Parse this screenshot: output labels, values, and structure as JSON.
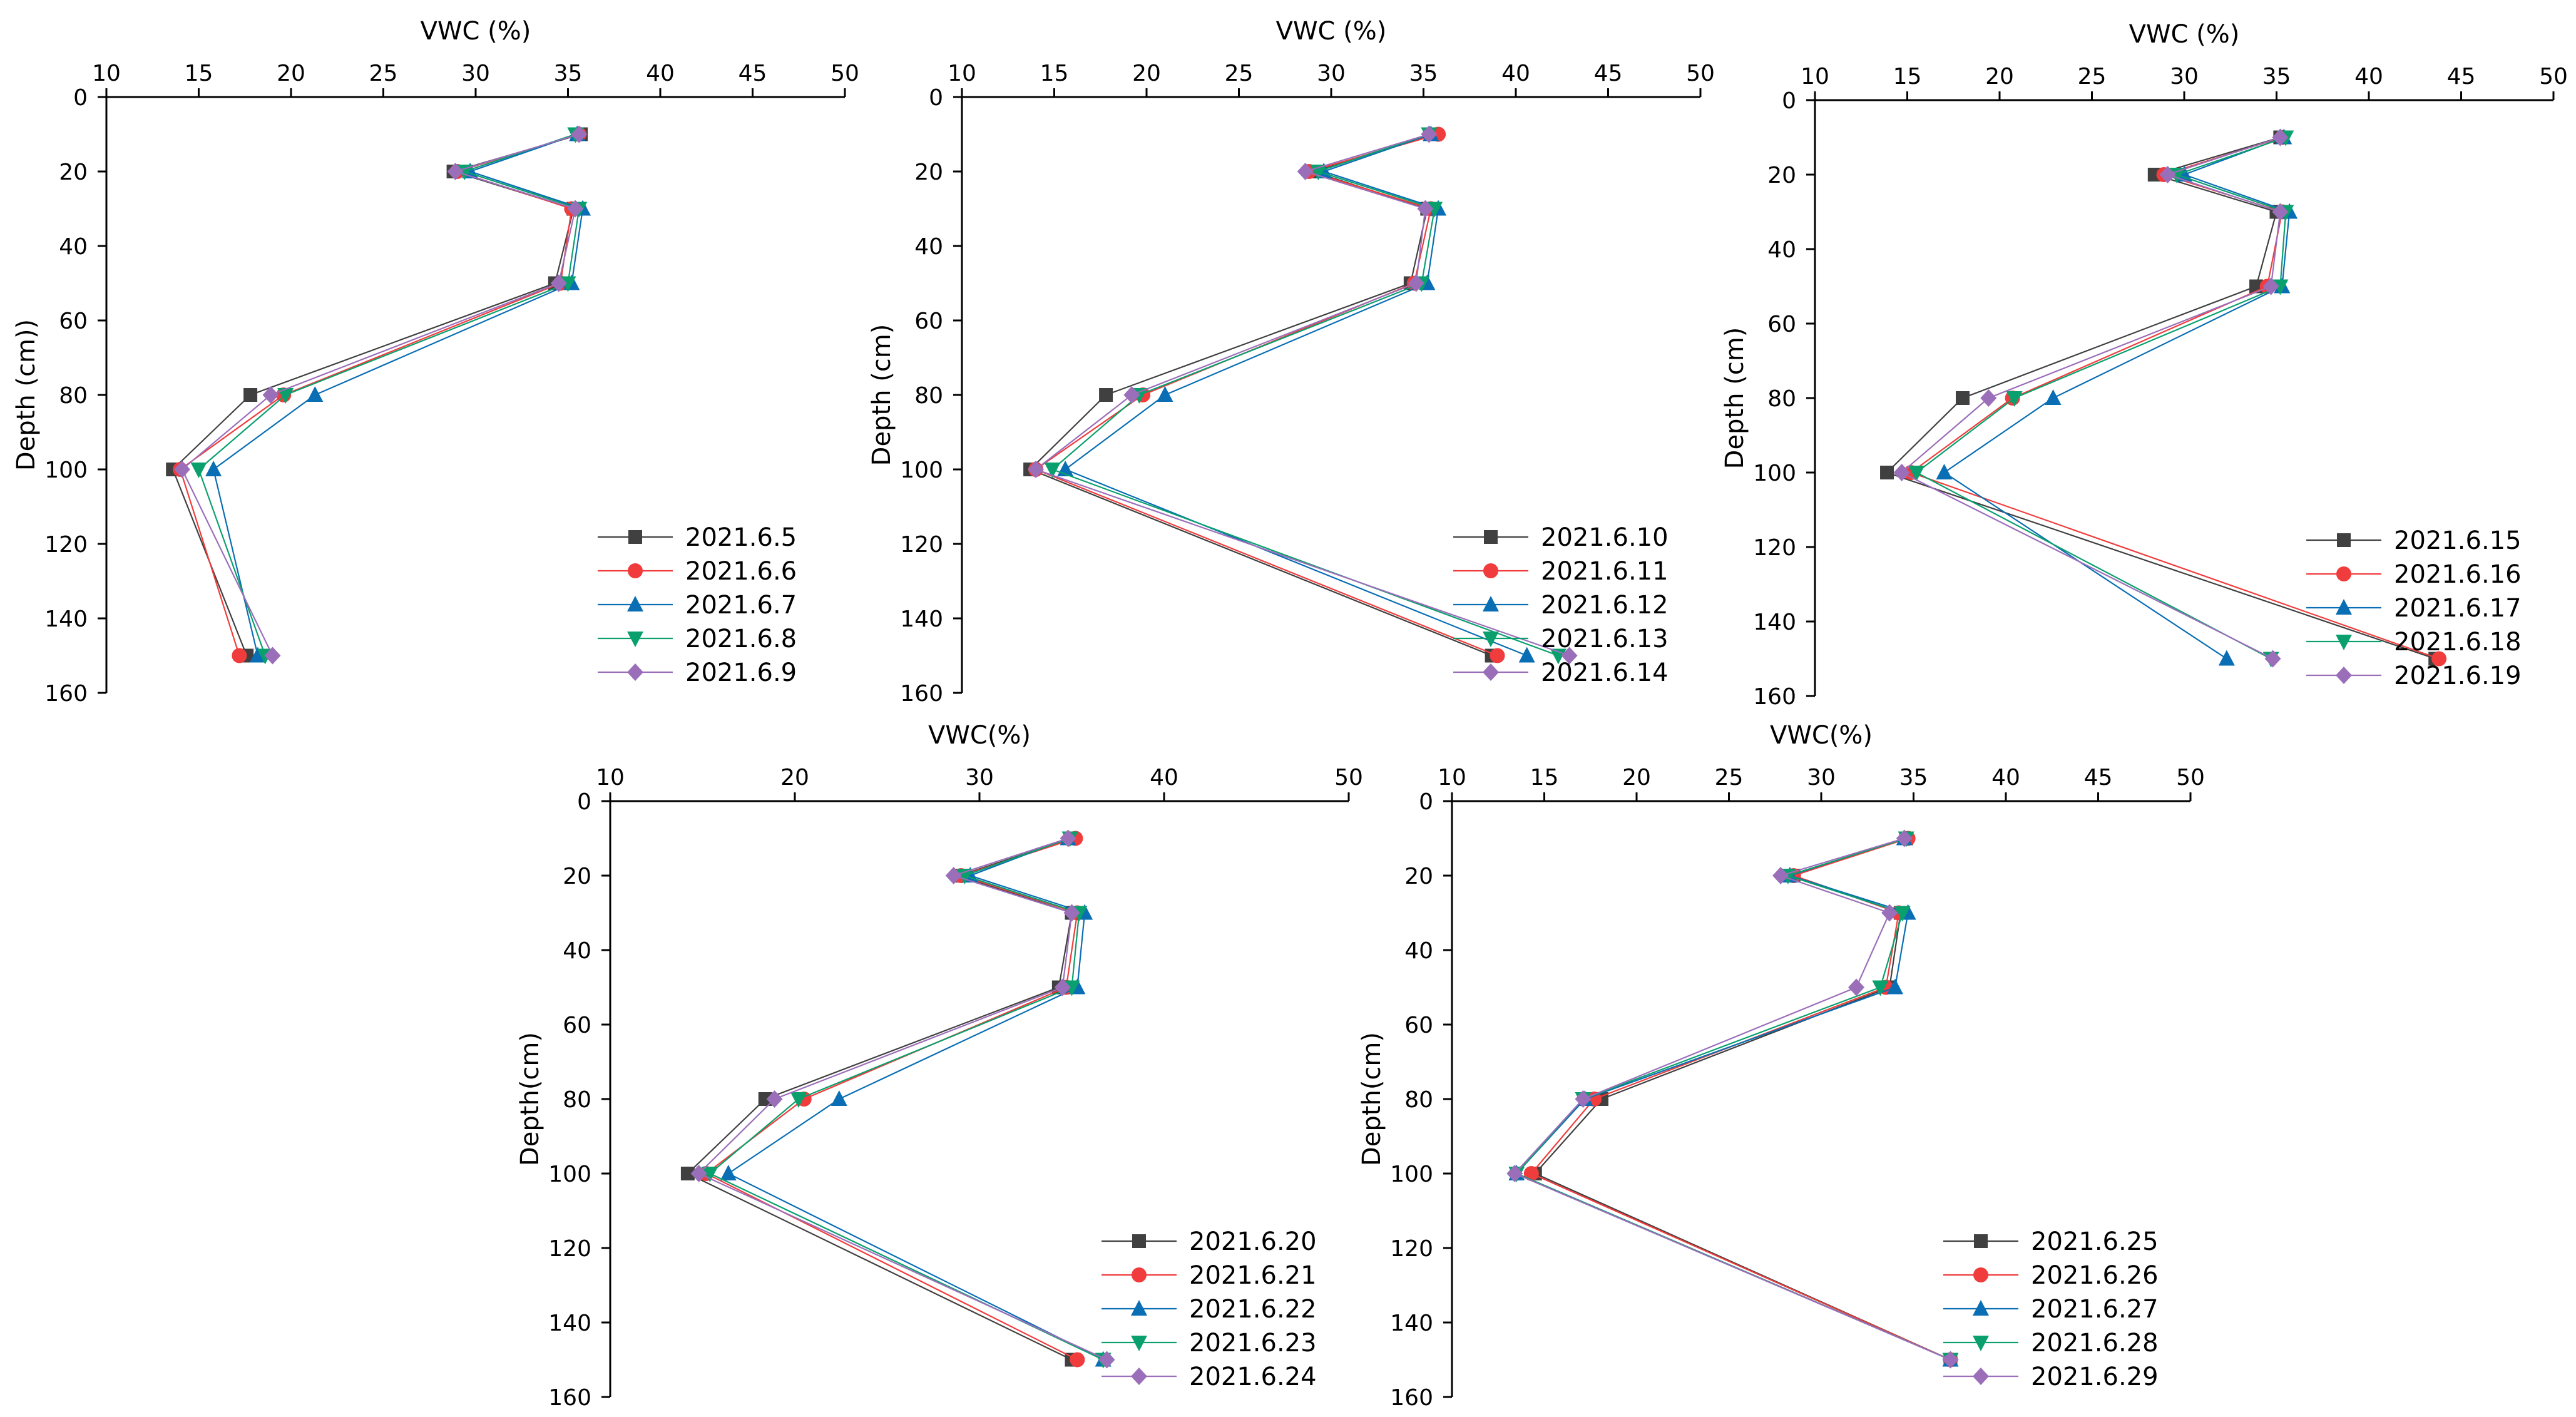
{
  "colors": {
    "series": [
      "#404040",
      "#f03c3c",
      "#0a6eb4",
      "#0aa06e",
      "#9b6eb9"
    ],
    "axis": "#000000"
  },
  "markers": [
    "square",
    "circle",
    "triangle-up",
    "triangle-down",
    "diamond"
  ],
  "chart_data": [
    {
      "type": "line",
      "xlabel": "VWC (%)",
      "ylabel": "Depth (cm))",
      "xlim": [
        10,
        50
      ],
      "ylim": [
        0,
        160
      ],
      "xticks": [
        "10",
        "15",
        "20",
        "25",
        "30",
        "35",
        "40",
        "45",
        "50"
      ],
      "yticks": [
        "0",
        "20",
        "40",
        "60",
        "80",
        "100",
        "120",
        "140",
        "160"
      ],
      "legend_position": "bottom-right",
      "depth": [
        10,
        20,
        30,
        50,
        80,
        100,
        150
      ],
      "series": [
        {
          "name": "2021.6.5",
          "values": [
            35.7,
            28.8,
            35.3,
            34.3,
            17.8,
            13.6,
            17.6
          ]
        },
        {
          "name": "2021.6.6",
          "values": [
            35.6,
            29.0,
            35.2,
            34.6,
            19.6,
            14.0,
            17.2
          ]
        },
        {
          "name": "2021.6.7",
          "values": [
            35.5,
            29.7,
            35.8,
            35.2,
            21.3,
            15.8,
            18.2
          ]
        },
        {
          "name": "2021.6.8",
          "values": [
            35.4,
            29.4,
            35.6,
            35.0,
            19.7,
            15.0,
            18.6
          ]
        },
        {
          "name": "2021.6.9",
          "values": [
            35.6,
            28.9,
            35.4,
            34.5,
            18.9,
            14.1,
            19.0
          ]
        }
      ]
    },
    {
      "type": "line",
      "xlabel": "VWC (%)",
      "ylabel": "Depth (cm)",
      "xlim": [
        10,
        50
      ],
      "ylim": [
        0,
        160
      ],
      "xticks": [
        "10",
        "15",
        "20",
        "25",
        "30",
        "35",
        "40",
        "45",
        "50"
      ],
      "yticks": [
        "0",
        "20",
        "40",
        "60",
        "80",
        "100",
        "120",
        "140",
        "160"
      ],
      "legend_position": "bottom-right",
      "depth": [
        10,
        20,
        30,
        50,
        80,
        100,
        150
      ],
      "series": [
        {
          "name": "2021.6.10",
          "values": [
            35.5,
            29.0,
            35.2,
            34.3,
            17.8,
            13.7,
            38.7
          ]
        },
        {
          "name": "2021.6.11",
          "values": [
            35.8,
            28.8,
            35.4,
            34.5,
            19.8,
            14.0,
            39.0
          ]
        },
        {
          "name": "2021.6.12",
          "values": [
            35.4,
            29.6,
            35.8,
            35.2,
            21.0,
            15.6,
            40.6
          ]
        },
        {
          "name": "2021.6.13",
          "values": [
            35.3,
            29.3,
            35.6,
            34.9,
            19.6,
            14.9,
            42.3
          ]
        },
        {
          "name": "2021.6.14",
          "values": [
            35.3,
            28.6,
            35.1,
            34.6,
            19.2,
            14.0,
            42.9
          ]
        }
      ]
    },
    {
      "type": "line",
      "xlabel": "VWC (%)",
      "ylabel": "Depth (cm)",
      "xlim": [
        10,
        50
      ],
      "ylim": [
        0,
        160
      ],
      "xticks": [
        "10",
        "15",
        "20",
        "25",
        "30",
        "35",
        "40",
        "45",
        "50"
      ],
      "yticks": [
        "0",
        "20",
        "40",
        "60",
        "80",
        "100",
        "120",
        "140",
        "160"
      ],
      "legend_position": "bottom-right",
      "depth": [
        10,
        20,
        30,
        50,
        80,
        100,
        150
      ],
      "series": [
        {
          "name": "2021.6.15",
          "values": [
            35.2,
            28.4,
            35.0,
            33.9,
            18.0,
            13.9,
            43.6
          ]
        },
        {
          "name": "2021.6.16",
          "values": [
            35.3,
            28.9,
            35.3,
            34.5,
            20.7,
            15.2,
            43.8
          ]
        },
        {
          "name": "2021.6.17",
          "values": [
            35.4,
            30.0,
            35.7,
            35.3,
            22.9,
            17.0,
            32.3
          ]
        },
        {
          "name": "2021.6.18",
          "values": [
            35.5,
            29.6,
            35.5,
            35.2,
            20.8,
            15.5,
            34.7
          ]
        },
        {
          "name": "2021.6.19",
          "values": [
            35.2,
            29.1,
            35.2,
            34.7,
            19.4,
            14.7,
            34.8
          ]
        }
      ]
    },
    {
      "type": "line",
      "xlabel": "VWC(%)",
      "ylabel": "Depth(cm)",
      "xlim": [
        10,
        50
      ],
      "ylim": [
        0,
        160
      ],
      "xticks": [
        "10",
        "20",
        "30",
        "40",
        "50"
      ],
      "yticks": [
        "0",
        "20",
        "40",
        "60",
        "80",
        "100",
        "120",
        "140",
        "160"
      ],
      "legend_position": "bottom-right",
      "depth": [
        10,
        20,
        30,
        50,
        80,
        100,
        150
      ],
      "series": [
        {
          "name": "2021.6.20",
          "values": [
            35.0,
            28.9,
            35.0,
            34.3,
            18.4,
            14.2,
            35.0
          ]
        },
        {
          "name": "2021.6.21",
          "values": [
            35.2,
            29.0,
            35.3,
            34.7,
            20.5,
            15.2,
            35.3
          ]
        },
        {
          "name": "2021.6.22",
          "values": [
            34.8,
            29.5,
            35.7,
            35.3,
            22.4,
            16.4,
            36.7
          ]
        },
        {
          "name": "2021.6.23",
          "values": [
            34.9,
            29.2,
            35.4,
            35.0,
            20.2,
            15.4,
            36.7
          ]
        },
        {
          "name": "2021.6.24",
          "values": [
            34.8,
            28.6,
            35.0,
            34.5,
            18.9,
            14.8,
            36.9
          ]
        }
      ]
    },
    {
      "type": "line",
      "xlabel": "VWC(%)",
      "ylabel": "Depth(cm)",
      "xlim": [
        10,
        50
      ],
      "ylim": [
        0,
        160
      ],
      "xticks": [
        "10",
        "15",
        "20",
        "25",
        "30",
        "35",
        "40",
        "45",
        "50"
      ],
      "yticks": [
        "0",
        "20",
        "40",
        "60",
        "80",
        "100",
        "120",
        "140",
        "160"
      ],
      "legend_position": "bottom-right",
      "depth": [
        10,
        20,
        30,
        50,
        80,
        100,
        150
      ],
      "series": [
        {
          "name": "2021.6.25",
          "values": [
            34.6,
            28.5,
            34.3,
            33.7,
            18.1,
            14.5,
            37.0
          ]
        },
        {
          "name": "2021.6.26",
          "values": [
            34.7,
            28.5,
            34.2,
            33.5,
            17.7,
            14.3,
            37.0
          ]
        },
        {
          "name": "2021.6.27",
          "values": [
            34.5,
            28.3,
            34.7,
            34.0,
            17.2,
            13.5,
            37.0
          ]
        },
        {
          "name": "2021.6.28",
          "values": [
            34.6,
            28.2,
            34.4,
            33.2,
            17.1,
            13.5,
            37.0
          ]
        },
        {
          "name": "2021.6.29",
          "values": [
            34.5,
            27.8,
            33.7,
            31.9,
            17.1,
            13.4,
            37.0
          ]
        }
      ]
    }
  ]
}
